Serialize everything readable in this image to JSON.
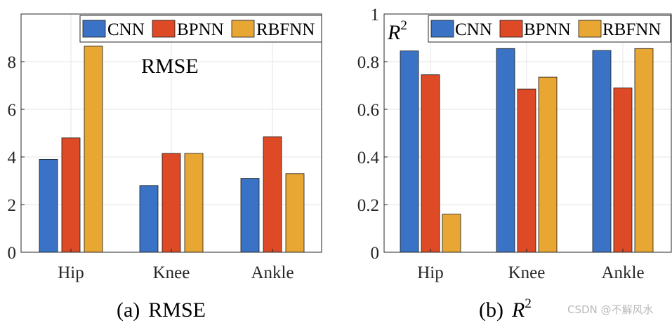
{
  "colors": {
    "CNN": "#3a73c5",
    "BPNN": "#dd4a25",
    "RBFNN": "#e8a632",
    "grid": "#e6e6e6",
    "axis": "#262626"
  },
  "captions": {
    "a_prefix": "(a)",
    "a_text": "RMSE",
    "b_prefix": "(b)",
    "b_base": "R",
    "b_sup": "2"
  },
  "watermark": "CSDN @不解风水",
  "chart_data": [
    {
      "type": "bar",
      "title": "",
      "annotation": "RMSE",
      "categories": [
        "Hip",
        "Knee",
        "Ankle"
      ],
      "series": [
        {
          "name": "CNN",
          "values": [
            3.9,
            2.8,
            3.1
          ]
        },
        {
          "name": "BPNN",
          "values": [
            4.8,
            4.15,
            4.85
          ]
        },
        {
          "name": "RBFNN",
          "values": [
            8.65,
            4.15,
            3.3
          ]
        }
      ],
      "xlabel": "",
      "ylabel": "",
      "ylim": [
        0,
        10
      ],
      "yticks": [
        "0",
        "2",
        "4",
        "6",
        "8"
      ],
      "grid": true,
      "legend": "top, horizontal"
    },
    {
      "type": "bar",
      "title": "",
      "annotation": {
        "base": "R",
        "sup": "2"
      },
      "categories": [
        "Hip",
        "Knee",
        "Ankle"
      ],
      "series": [
        {
          "name": "CNN",
          "values": [
            0.845,
            0.855,
            0.847
          ]
        },
        {
          "name": "BPNN",
          "values": [
            0.745,
            0.685,
            0.69
          ]
        },
        {
          "name": "RBFNN",
          "values": [
            0.16,
            0.735,
            0.855
          ]
        }
      ],
      "xlabel": "",
      "ylabel": "",
      "ylim": [
        0,
        1
      ],
      "yticks": [
        "0",
        "0.2",
        "0.4",
        "0.6",
        "0.8",
        "1"
      ],
      "grid": true,
      "legend": "top, horizontal"
    }
  ]
}
